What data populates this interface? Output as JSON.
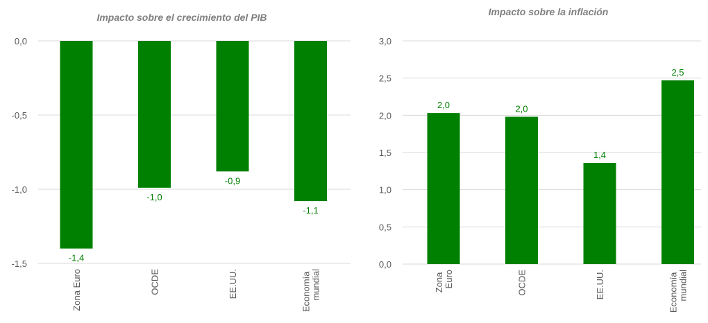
{
  "chart_data": [
    {
      "type": "bar",
      "title": "Impacto sobre el crecimiento del PIB",
      "categories": [
        "Zona Euro",
        "OCDE",
        "EE.UU.",
        "Economía mundial"
      ],
      "values": [
        -1.4,
        -0.99,
        -0.88,
        -1.08
      ],
      "value_labels": [
        "-1,4",
        "-1,0",
        "-0,9",
        "-1,1"
      ],
      "color": "#008000",
      "ylim": [
        -1.5,
        0
      ],
      "yticks": [
        {
          "value": 0,
          "label": "0,0"
        },
        {
          "value": -0.5,
          "label": "-0,5"
        },
        {
          "value": -1,
          "label": "-1,0"
        },
        {
          "value": -1.5,
          "label": "-1,5"
        }
      ],
      "grid": true
    },
    {
      "type": "bar",
      "title": "Impacto sobre la inflación",
      "categories": [
        "Zona Euro",
        "OCDE",
        "EE.UU.",
        "Economía mundial"
      ],
      "values": [
        2.03,
        1.98,
        1.36,
        2.47
      ],
      "value_labels": [
        "2,0",
        "2,0",
        "1,4",
        "2,5"
      ],
      "color": "#008000",
      "ylim": [
        0,
        3
      ],
      "yticks": [
        {
          "value": 0,
          "label": "0,0"
        },
        {
          "value": 0.5,
          "label": "0,5"
        },
        {
          "value": 1,
          "label": "1,0"
        },
        {
          "value": 1.5,
          "label": "1,5"
        },
        {
          "value": 2,
          "label": "2,0"
        },
        {
          "value": 2.5,
          "label": "2,5"
        },
        {
          "value": 3,
          "label": "3,0"
        }
      ],
      "grid": true
    }
  ]
}
